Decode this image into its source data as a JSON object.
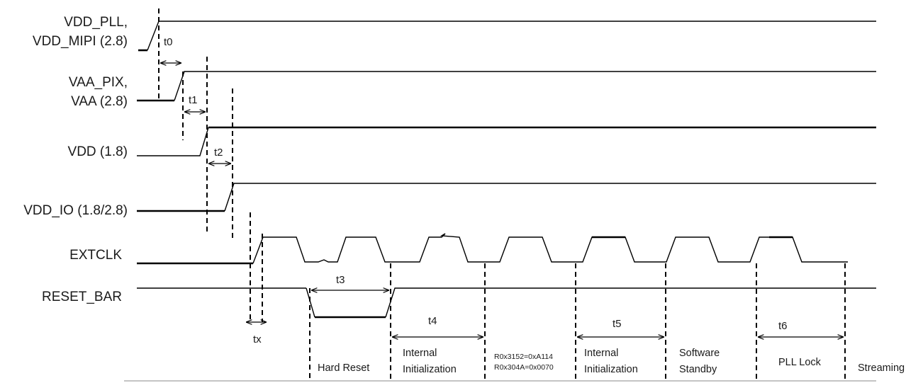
{
  "signals": {
    "vdd_pll": {
      "line1": "VDD_PLL,",
      "line2": "VDD_MIPI (2.8)"
    },
    "vaa_pix": {
      "line1": "VAA_PIX,",
      "line2": "VAA (2.8)"
    },
    "vdd": {
      "label": "VDD (1.8)"
    },
    "vdd_io": {
      "label": "VDD_IO (1.8/2.8)"
    },
    "extclk": {
      "label": "EXTCLK"
    },
    "reset_bar": {
      "label": "RESET_BAR"
    }
  },
  "timings": {
    "t0": "t0",
    "t1": "t1",
    "t2": "t2",
    "t3": "t3",
    "t4": "t4",
    "t5": "t5",
    "t6": "t6",
    "tx": "tx"
  },
  "phases": {
    "hard_reset": "Hard Reset",
    "internal_init_1": {
      "line1": "Internal",
      "line2": "Initialization"
    },
    "register_writes": {
      "line1": "R0x3152=0xA114",
      "line2": "R0x304A=0x0070"
    },
    "internal_init_2": {
      "line1": "Internal",
      "line2": "Initialization"
    },
    "software_standby": {
      "line1": "Software",
      "line2": "Standby"
    },
    "pll_lock": "PLL Lock",
    "streaming": "Streaming"
  }
}
